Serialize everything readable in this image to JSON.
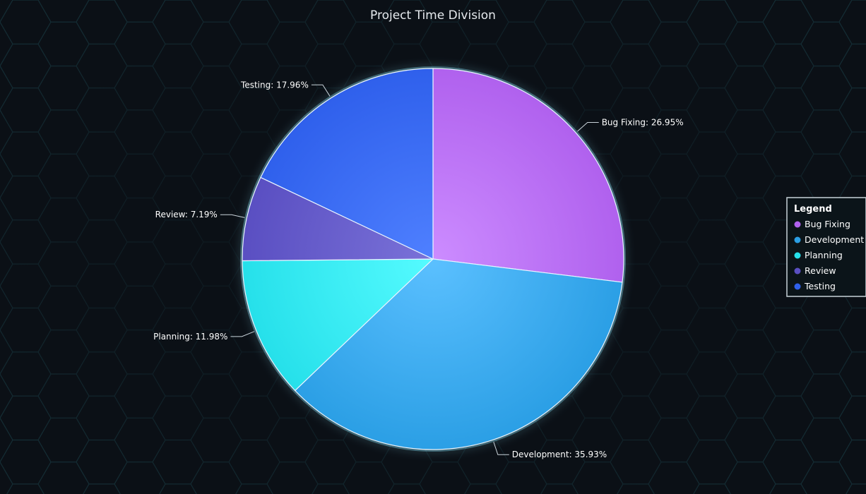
{
  "chart_data": {
    "type": "pie",
    "title": "Project Time Division",
    "slices": [
      {
        "label": "Bug Fixing",
        "value": 26.95,
        "display": "Bug Fixing: 26.95%",
        "color": "#b061ee",
        "highlight": "#cc8cff"
      },
      {
        "label": "Development",
        "value": 35.93,
        "display": "Development: 35.93%",
        "color": "#2b9fe5",
        "highlight": "#5bc0ff"
      },
      {
        "label": "Planning",
        "value": 11.98,
        "display": "Planning: 11.98%",
        "color": "#26e0ea",
        "highlight": "#55fbff"
      },
      {
        "label": "Review",
        "value": 7.19,
        "display": "Review: 7.19%",
        "color": "#5a4fc2",
        "highlight": "#7a72d8"
      },
      {
        "label": "Testing",
        "value": 17.96,
        "display": "Testing: 17.96%",
        "color": "#2f60ec",
        "highlight": "#4f80ff"
      }
    ],
    "legend": {
      "title": "Legend",
      "placement": "right",
      "items": [
        "Bug Fixing",
        "Development",
        "Planning",
        "Review",
        "Testing"
      ]
    },
    "start": "top",
    "direction": "clockwise"
  }
}
